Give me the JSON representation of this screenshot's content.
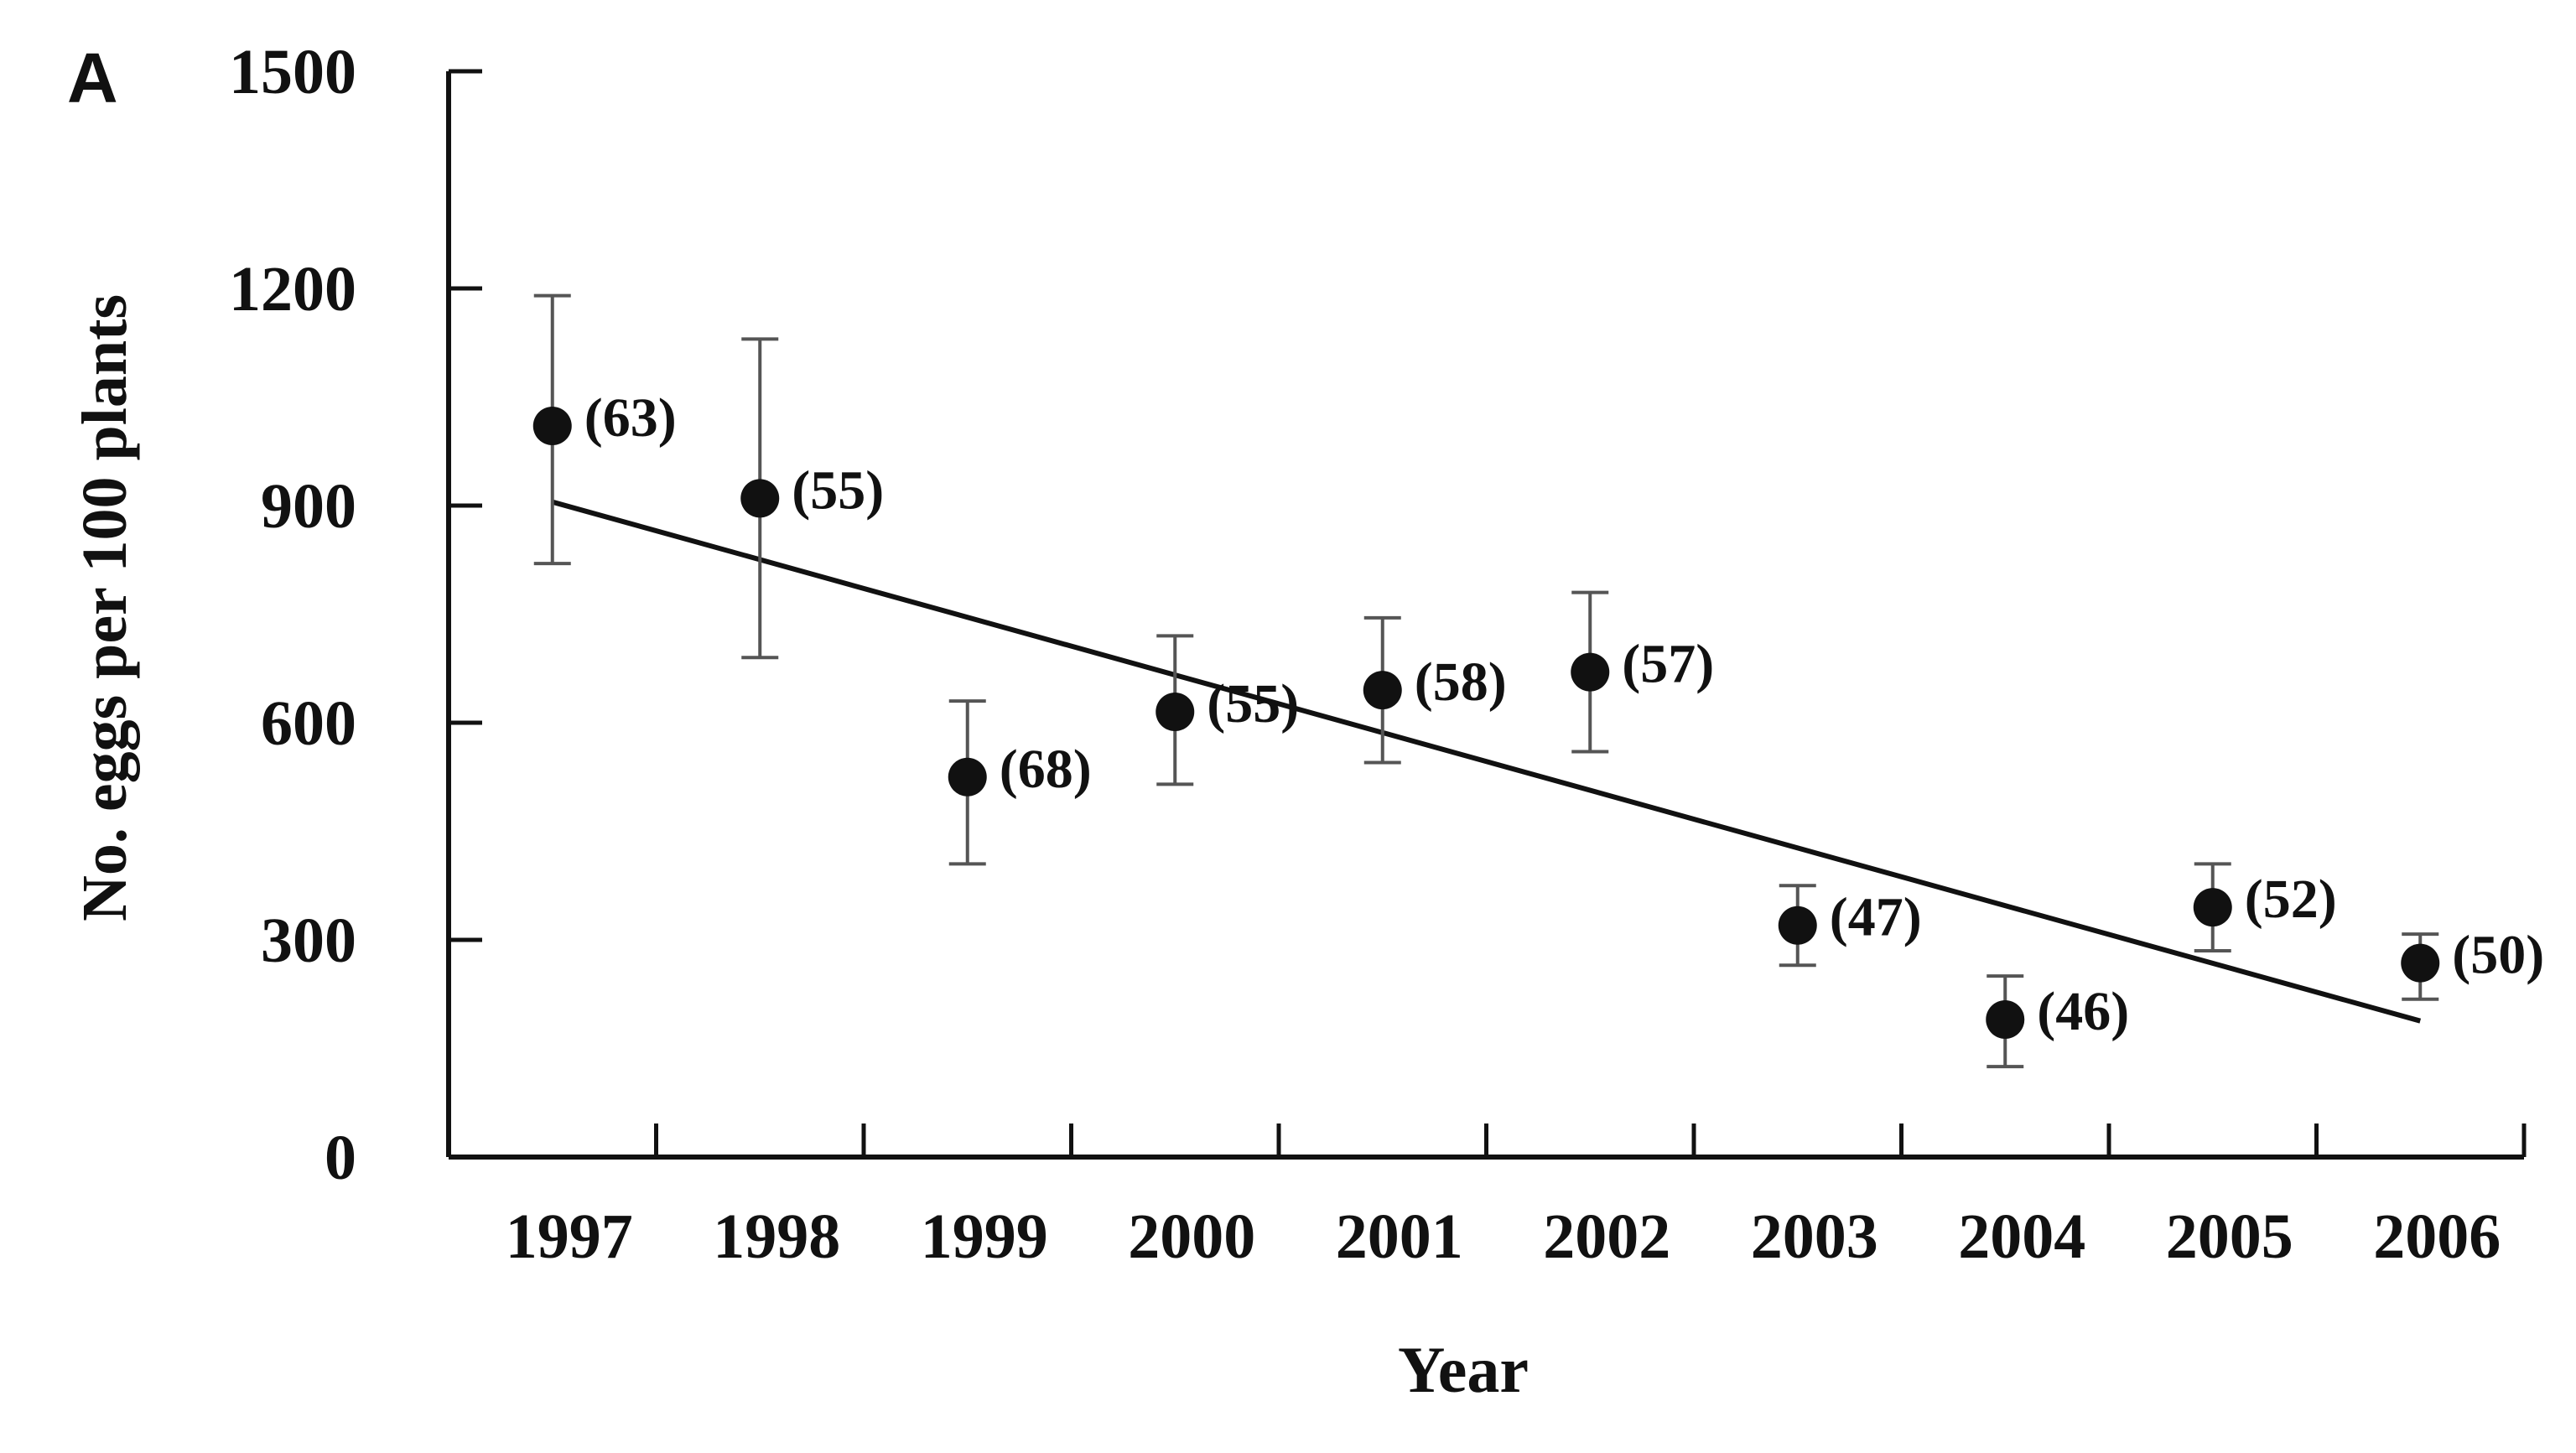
{
  "chart_data": {
    "type": "scatter",
    "panel_label": "A",
    "title": "",
    "xlabel": "Year",
    "ylabel": "No. eggs per 100 plants",
    "categories": [
      "1997",
      "1998",
      "1999",
      "2000",
      "2001",
      "2002",
      "2003",
      "2004",
      "2005",
      "2006"
    ],
    "ylim": [
      0,
      1500
    ],
    "yticks": [
      "0",
      "300",
      "600",
      "900",
      "1200",
      "1500"
    ],
    "grid": false,
    "legend": "none",
    "colors": {
      "ink": "#111111",
      "error_bar": "#555555"
    },
    "series": [
      {
        "values": [
          1010,
          910,
          525,
          615,
          645,
          670,
          320,
          190,
          345,
          268
        ],
        "error_low": [
          820,
          690,
          405,
          515,
          545,
          560,
          265,
          125,
          285,
          218
        ],
        "error_high": [
          1190,
          1130,
          630,
          720,
          745,
          780,
          375,
          250,
          405,
          308
        ],
        "point_labels": [
          "(63)",
          "(55)",
          "(68)",
          "(55)",
          "(58)",
          "(57)",
          "(47)",
          "(46)",
          "(52)",
          "(50)"
        ]
      }
    ],
    "trendline": {
      "x_start": "1997",
      "y_start": 905,
      "x_end": "2006",
      "y_end": 188
    }
  }
}
